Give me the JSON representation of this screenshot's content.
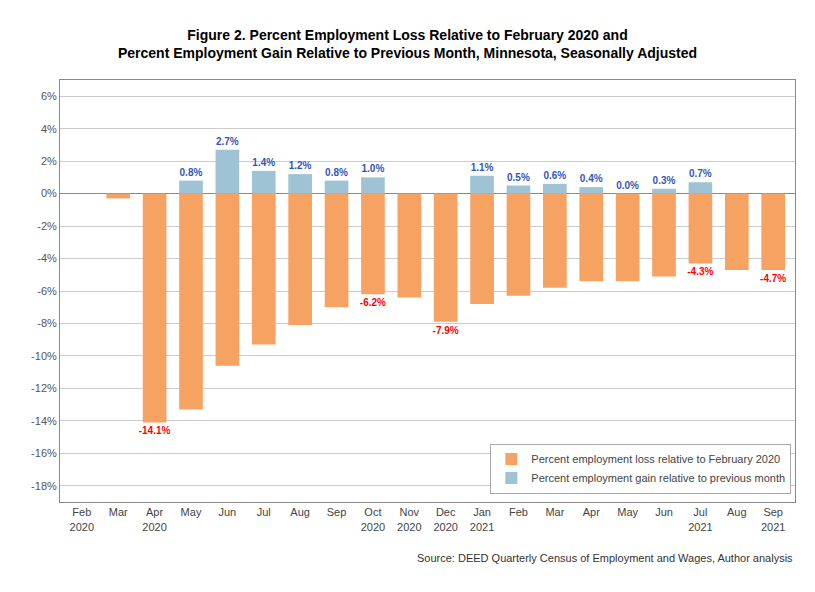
{
  "chart_data": {
    "type": "bar",
    "title": "Figure 2. Percent Employment Loss Relative to February 2020 and\nPercent Employment Gain Relative to Previous Month, Minnesota, Seasonally Adjusted",
    "categories": [
      "Feb\n2020",
      "Mar",
      "Apr\n2020",
      "May",
      "Jun",
      "Jul",
      "Aug",
      "Sep",
      "Oct\n2020",
      "Nov\n2020",
      "Dec\n2020",
      "Jan\n2021",
      "Feb",
      "Mar",
      "Apr",
      "May",
      "Jun",
      "Jul\n2021",
      "Aug",
      "Sep\n2021"
    ],
    "series": [
      {
        "name": "Percent employment loss relative to February 2020",
        "color": "#F5A263",
        "values": [
          0.0,
          -0.3,
          -14.1,
          -13.3,
          -10.6,
          -9.3,
          -8.1,
          -7.0,
          -6.2,
          -6.4,
          -7.9,
          -6.8,
          -6.3,
          -5.8,
          -5.4,
          -5.4,
          -5.1,
          -4.3,
          -4.7,
          -4.7
        ],
        "value_labels": [
          null,
          null,
          "-14.1%",
          null,
          null,
          null,
          null,
          null,
          "-6.2%",
          null,
          "-7.9%",
          null,
          null,
          null,
          null,
          null,
          null,
          "-4.3%",
          null,
          "-4.7%"
        ]
      },
      {
        "name": "Percent employment gain relative to previous month",
        "color": "#9DC3D4",
        "values": [
          null,
          null,
          null,
          0.8,
          2.7,
          1.4,
          1.2,
          0.8,
          1.0,
          null,
          null,
          1.1,
          0.5,
          0.6,
          0.4,
          0.0,
          0.3,
          0.7,
          null,
          null
        ],
        "value_labels": [
          null,
          null,
          null,
          "0.8%",
          "2.7%",
          "1.4%",
          "1.2%",
          "0.8%",
          "1.0%",
          null,
          null,
          "1.1%",
          "0.5%",
          "0.6%",
          "0.4%",
          "0.0%",
          "0.3%",
          "0.7%",
          null,
          null
        ]
      }
    ],
    "ylim": [
      -19,
      7
    ],
    "yticks": [
      {
        "value": -18,
        "label": "-18%"
      },
      {
        "value": -16,
        "label": "-16%"
      },
      {
        "value": -14,
        "label": "-14%"
      },
      {
        "value": -12,
        "label": "-12%"
      },
      {
        "value": -10,
        "label": "-10%"
      },
      {
        "value": -8,
        "label": "-8%"
      },
      {
        "value": -6,
        "label": "-6%"
      },
      {
        "value": -4,
        "label": "-4%"
      },
      {
        "value": -2,
        "label": "-2%"
      },
      {
        "value": 0,
        "label": "0%"
      },
      {
        "value": 2,
        "label": "2%"
      },
      {
        "value": 4,
        "label": "4%"
      },
      {
        "value": 6,
        "label": "6%"
      }
    ],
    "grid": true,
    "legend": "lower right",
    "annotations": [
      "Source: DEED Quarterly Census of Employment and Wages, Author analysis"
    ]
  }
}
